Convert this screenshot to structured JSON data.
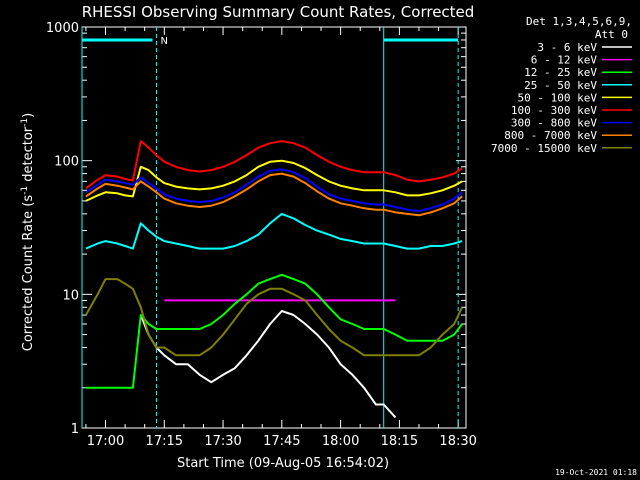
{
  "chart_data": {
    "type": "line",
    "title": "RHESSI Observing Summary Count Rates, Corrected",
    "xlabel": "Start Time (09-Aug-05 16:54:02)",
    "ylabel_main": "Corrected Count Rate (s",
    "ylabel_sup1": "-1",
    "ylabel_mid": " detector",
    "ylabel_sup2": "-1",
    "ylabel_end": ")",
    "x_scale": "time-minutes",
    "x_range": [
      "16:54",
      "18:32"
    ],
    "x_ticks": [
      "17:00",
      "17:15",
      "17:30",
      "17:45",
      "18:00",
      "18:15",
      "18:30"
    ],
    "y_scale": "log",
    "ylim": [
      1,
      1000
    ],
    "y_ticks": [
      "1",
      "10",
      "100",
      "1000"
    ],
    "grid": false,
    "legend_position": "top-right",
    "legend_header": [
      "Det 1,3,4,5,6,9,",
      "Att 0"
    ],
    "timestamp": "19-Oct-2021 01:18",
    "annotations": [
      {
        "text": "N",
        "x": "17:13"
      }
    ],
    "markers": {
      "night_lines": [
        "17:13",
        "18:30"
      ],
      "day_lines": [
        "16:54",
        "18:11"
      ],
      "bar_segments": [
        [
          "16:54",
          "17:12"
        ],
        [
          "18:11",
          "18:30"
        ]
      ],
      "bar_value": 800,
      "bar_color": "#00ffff"
    },
    "x": [
      "16:55",
      "16:58",
      "17:00",
      "17:03",
      "17:05",
      "17:07",
      "17:09",
      "17:11",
      "17:13",
      "17:15",
      "17:18",
      "17:21",
      "17:24",
      "17:27",
      "17:30",
      "17:33",
      "17:36",
      "17:39",
      "17:42",
      "17:45",
      "17:48",
      "17:51",
      "17:54",
      "17:57",
      "18:00",
      "18:03",
      "18:06",
      "18:09",
      "18:11",
      "18:14",
      "18:17",
      "18:20",
      "18:23",
      "18:26",
      "18:29",
      "18:31"
    ],
    "series": [
      {
        "name": "3 - 6 keV",
        "color": "#ffffff",
        "values": [
          null,
          null,
          null,
          null,
          null,
          null,
          7,
          5,
          4,
          3.5,
          3,
          3,
          2.5,
          2.2,
          2.5,
          2.8,
          3.5,
          4.5,
          6,
          7.5,
          7,
          6,
          5,
          4,
          3,
          2.5,
          2,
          1.5,
          1.5,
          1.2,
          null,
          null,
          null,
          null,
          null,
          null
        ]
      },
      {
        "name": "6 - 12 keV",
        "color": "#ff00ff",
        "values": [
          null,
          null,
          null,
          null,
          null,
          null,
          null,
          null,
          null,
          9,
          9,
          9,
          9,
          9,
          9,
          9,
          9,
          9,
          9,
          9,
          9,
          9,
          9,
          9,
          9,
          9,
          9,
          9,
          9,
          9,
          null,
          null,
          null,
          null,
          null,
          null
        ]
      },
      {
        "name": "12 - 25 keV",
        "color": "#00ff00",
        "values": [
          2,
          2,
          2,
          2,
          2,
          2,
          7,
          6,
          5.5,
          5.5,
          5.5,
          5.5,
          5.5,
          6,
          7,
          8.5,
          10,
          12,
          13,
          14,
          13,
          12,
          10,
          8,
          6.5,
          6,
          5.5,
          5.5,
          5.5,
          5,
          4.5,
          4.5,
          4.5,
          4.5,
          5,
          6
        ]
      },
      {
        "name": "25 - 50 keV",
        "color": "#00ffff",
        "values": [
          22,
          24,
          25,
          24,
          23,
          22,
          34,
          30,
          27,
          25,
          24,
          23,
          22,
          22,
          22,
          23,
          25,
          28,
          34,
          40,
          37,
          33,
          30,
          28,
          26,
          25,
          24,
          24,
          24,
          23,
          22,
          22,
          23,
          23,
          24,
          25
        ]
      },
      {
        "name": "50 - 100 keV",
        "color": "#ffff00",
        "values": [
          50,
          55,
          58,
          57,
          55,
          54,
          90,
          85,
          75,
          68,
          64,
          62,
          61,
          62,
          65,
          70,
          78,
          90,
          98,
          100,
          96,
          88,
          78,
          70,
          65,
          62,
          60,
          60,
          60,
          58,
          55,
          55,
          57,
          60,
          65,
          70
        ]
      },
      {
        "name": "100 - 300 keV",
        "color": "#ff0000",
        "values": [
          62,
          72,
          78,
          76,
          73,
          71,
          140,
          125,
          110,
          98,
          90,
          85,
          83,
          85,
          90,
          98,
          110,
          125,
          135,
          140,
          135,
          125,
          110,
          98,
          90,
          85,
          82,
          82,
          82,
          78,
          72,
          70,
          72,
          75,
          80,
          88
        ]
      },
      {
        "name": "300 - 800 keV",
        "color": "#0000ff",
        "values": [
          58,
          66,
          72,
          70,
          68,
          66,
          75,
          68,
          62,
          56,
          52,
          50,
          49,
          50,
          53,
          58,
          66,
          76,
          84,
          86,
          82,
          74,
          64,
          56,
          52,
          50,
          48,
          47,
          47,
          45,
          43,
          42,
          44,
          47,
          52,
          58
        ]
      },
      {
        "name": "800 - 7000 keV",
        "color": "#ff8000",
        "values": [
          54,
          62,
          67,
          65,
          63,
          61,
          70,
          64,
          58,
          52,
          48,
          46,
          45,
          46,
          49,
          54,
          61,
          70,
          78,
          80,
          76,
          68,
          59,
          52,
          48,
          46,
          44,
          43,
          43,
          41,
          40,
          39,
          41,
          44,
          48,
          54
        ]
      },
      {
        "name": "7000 - 15000 keV",
        "color": "#808000",
        "values": [
          7,
          10,
          13,
          13,
          12,
          11,
          8,
          5,
          4,
          4,
          3.5,
          3.5,
          3.5,
          4,
          5,
          6.5,
          8.5,
          10,
          11,
          11,
          10,
          9,
          7,
          5.5,
          4.5,
          4,
          3.5,
          3.5,
          3.5,
          3.5,
          3.5,
          3.5,
          4,
          5,
          6,
          8
        ]
      }
    ]
  }
}
